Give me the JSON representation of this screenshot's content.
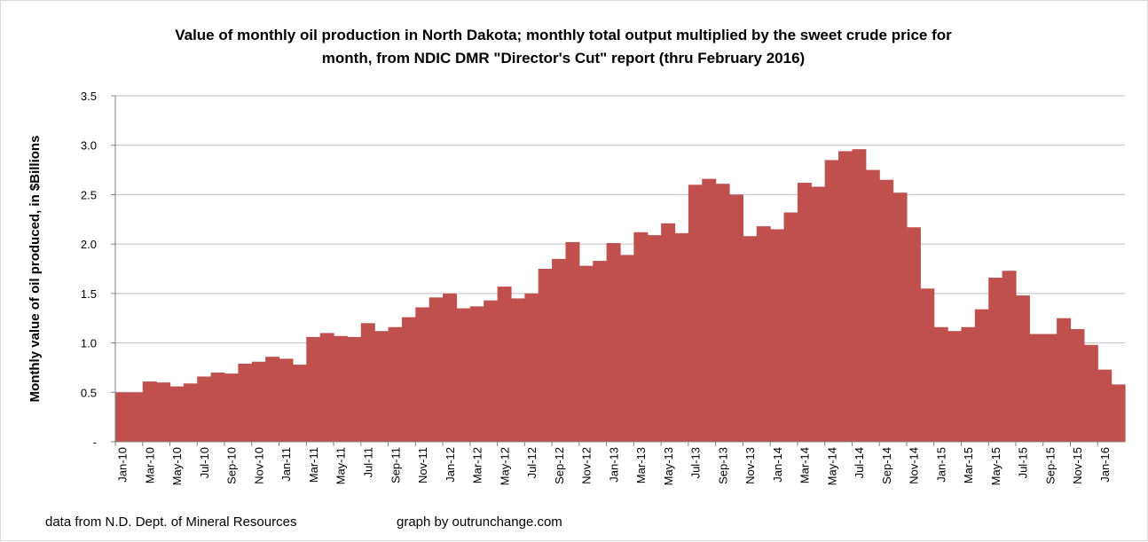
{
  "chart_data": {
    "type": "area",
    "title_lines": [
      "Value of monthly oil production  in North Dakota; monthly total output multiplied  by the sweet crude price for",
      "month, from NDIC DMR \"Director's Cut\" report  (thru February 2016)"
    ],
    "ylabel": "Monthly value of oil produced, in $Billions",
    "xlabel": "",
    "ylim": [
      0,
      3.5
    ],
    "yticks": [
      0,
      0.5,
      1.0,
      1.5,
      2.0,
      2.5,
      3.0,
      3.5
    ],
    "ytick_labels": [
      "-",
      "0.5",
      "1.0",
      "1.5",
      "2.0",
      "2.5",
      "3.0",
      "3.5"
    ],
    "grid": true,
    "step": true,
    "fill_color": "#C0504D",
    "grid_color": "#BFBFBF",
    "x_tick_labels": [
      "Jan-10",
      "Mar-10",
      "May-10",
      "Jul-10",
      "Sep-10",
      "Nov-10",
      "Jan-11",
      "Mar-11",
      "May-11",
      "Jul-11",
      "Sep-11",
      "Nov-11",
      "Jan-12",
      "Mar-12",
      "May-12",
      "Jul-12",
      "Sep-12",
      "Nov-12",
      "Jan-13",
      "Mar-13",
      "May-13",
      "Jul-13",
      "Sep-13",
      "Nov-13",
      "Jan-14",
      "Mar-14",
      "May-14",
      "Jul-14",
      "Sep-14",
      "Nov-14",
      "Jan-15",
      "Mar-15",
      "May-15",
      "Jul-15",
      "Sep-15",
      "Nov-15",
      "Jan-16"
    ],
    "series": [
      {
        "name": "Monthly value of oil produced",
        "values": [
          0.5,
          0.5,
          0.61,
          0.6,
          0.56,
          0.59,
          0.66,
          0.7,
          0.69,
          0.79,
          0.81,
          0.86,
          0.84,
          0.78,
          1.06,
          1.1,
          1.07,
          1.06,
          1.2,
          1.12,
          1.16,
          1.26,
          1.36,
          1.46,
          1.5,
          1.35,
          1.37,
          1.43,
          1.57,
          1.45,
          1.5,
          1.75,
          1.85,
          2.02,
          1.78,
          1.83,
          2.01,
          1.89,
          2.12,
          2.09,
          2.21,
          2.11,
          2.6,
          2.66,
          2.61,
          2.5,
          2.08,
          2.18,
          2.15,
          2.32,
          2.62,
          2.58,
          2.85,
          2.94,
          2.96,
          2.75,
          2.65,
          2.52,
          2.17,
          1.55,
          1.16,
          1.12,
          1.16,
          1.34,
          1.66,
          1.73,
          1.48,
          1.09,
          1.09,
          1.25,
          1.14,
          0.98,
          0.73,
          0.58
        ]
      }
    ]
  },
  "footer": {
    "source": "data from N.D. Dept. of Mineral Resources",
    "credit": "graph by outrunchange.com"
  }
}
